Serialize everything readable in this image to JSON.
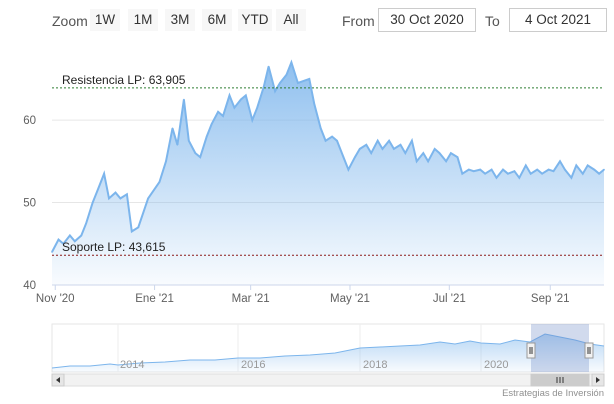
{
  "range_selector": {
    "zoom_label": "Zoom",
    "buttons": [
      "1W",
      "1M",
      "3M",
      "6M",
      "YTD",
      "All"
    ],
    "from_label": "From",
    "from_value": "30 Oct 2020",
    "to_label": "To",
    "to_value": "4 Oct 2021"
  },
  "colors": {
    "line": "#7cb5ec",
    "fill_top": "#7cb5ec",
    "resistance": "#2e7d32",
    "support": "#8b1a1a",
    "grid": "#e6e6e6"
  },
  "annotations": {
    "resistance_label": "Resistencia LP: 63,905",
    "support_label": "Soporte LP: 43,615"
  },
  "navigator": {
    "year_labels": [
      "2014",
      "2016",
      "2018",
      "2020"
    ],
    "scroll_icon": "grip-lines-icon"
  },
  "credits": "Estrategias de Inversión",
  "chart_data": {
    "type": "area",
    "x_axis_type": "datetime",
    "x_ticks": [
      "Nov '20",
      "Ene '21",
      "Mar '21",
      "May '21",
      "Jul '21",
      "Sep '21"
    ],
    "y_ticks": [
      40,
      50,
      60
    ],
    "ylim": [
      40,
      68.5
    ],
    "xlim": [
      "2020-10-30",
      "2021-10-04"
    ],
    "plot_lines": [
      {
        "name": "Resistencia LP",
        "value": 63.905
      },
      {
        "name": "Soporte LP",
        "value": 43.615
      }
    ],
    "x": [
      "2020-10-30",
      "2020-11-03",
      "2020-11-06",
      "2020-11-10",
      "2020-11-13",
      "2020-11-17",
      "2020-11-20",
      "2020-11-24",
      "2020-11-27",
      "2020-12-01",
      "2020-12-04",
      "2020-12-08",
      "2020-12-11",
      "2020-12-15",
      "2020-12-18",
      "2020-12-22",
      "2020-12-28",
      "2021-01-04",
      "2021-01-08",
      "2021-01-12",
      "2021-01-15",
      "2021-01-19",
      "2021-01-22",
      "2021-01-26",
      "2021-01-29",
      "2021-02-02",
      "2021-02-05",
      "2021-02-09",
      "2021-02-12",
      "2021-02-16",
      "2021-02-19",
      "2021-02-23",
      "2021-02-26",
      "2021-03-02",
      "2021-03-05",
      "2021-03-09",
      "2021-03-12",
      "2021-03-16",
      "2021-03-19",
      "2021-03-23",
      "2021-03-26",
      "2021-03-30",
      "2021-04-06",
      "2021-04-09",
      "2021-04-13",
      "2021-04-16",
      "2021-04-20",
      "2021-04-23",
      "2021-04-27",
      "2021-04-30",
      "2021-05-04",
      "2021-05-07",
      "2021-05-11",
      "2021-05-14",
      "2021-05-18",
      "2021-05-21",
      "2021-05-25",
      "2021-05-28",
      "2021-06-01",
      "2021-06-04",
      "2021-06-08",
      "2021-06-11",
      "2021-06-15",
      "2021-06-18",
      "2021-06-22",
      "2021-06-25",
      "2021-06-29",
      "2021-07-02",
      "2021-07-06",
      "2021-07-09",
      "2021-07-13",
      "2021-07-16",
      "2021-07-20",
      "2021-07-23",
      "2021-07-27",
      "2021-07-30",
      "2021-08-03",
      "2021-08-06",
      "2021-08-10",
      "2021-08-13",
      "2021-08-17",
      "2021-08-20",
      "2021-08-24",
      "2021-08-27",
      "2021-08-31",
      "2021-09-03",
      "2021-09-07",
      "2021-09-10",
      "2021-09-14",
      "2021-09-17",
      "2021-09-21",
      "2021-09-24",
      "2021-09-28",
      "2021-10-01",
      "2021-10-04"
    ],
    "series": [
      {
        "values": [
          44.0,
          45.5,
          45.0,
          46.0,
          45.3,
          46.0,
          47.5,
          50.0,
          51.5,
          53.5,
          50.5,
          51.2,
          50.5,
          51.0,
          46.5,
          47.0,
          50.5,
          52.5,
          55.0,
          59.0,
          57.0,
          62.5,
          57.5,
          56.0,
          55.5,
          58.0,
          59.5,
          61.0,
          60.5,
          63.0,
          61.5,
          62.5,
          63.0,
          60.0,
          61.5,
          64.0,
          66.5,
          63.5,
          64.5,
          65.5,
          67.0,
          64.5,
          65.0,
          62.0,
          59.0,
          57.5,
          58.0,
          57.5,
          55.5,
          54.0,
          55.5,
          56.5,
          57.0,
          56.0,
          57.5,
          56.5,
          57.5,
          56.5,
          57.0,
          56.0,
          57.5,
          55.0,
          56.0,
          55.0,
          56.5,
          56.0,
          55.0,
          56.0,
          55.5,
          53.5,
          54.0,
          53.8,
          54.0,
          53.5,
          54.0,
          53.0,
          54.0,
          53.5,
          53.8,
          53.0,
          54.5,
          53.5,
          54.0,
          53.5,
          54.0,
          53.8,
          55.0,
          54.0,
          53.0,
          54.5,
          53.5,
          54.5,
          54.0,
          53.5,
          54.0
        ]
      }
    ]
  }
}
